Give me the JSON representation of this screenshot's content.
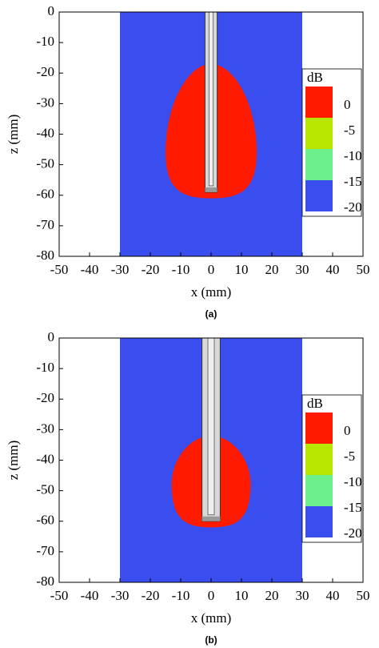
{
  "chart_data": [
    {
      "type": "contour",
      "caption": "(a)",
      "xlabel": "x (mm)",
      "ylabel": "z (mm)",
      "xlim": [
        -50,
        50
      ],
      "ylim": [
        -80,
        0
      ],
      "xticks": [
        -50,
        -40,
        -30,
        -20,
        -10,
        0,
        10,
        20,
        30,
        40,
        50
      ],
      "yticks": [
        0,
        -10,
        -20,
        -30,
        -40,
        -50,
        -60,
        -70,
        -80
      ],
      "colorbar": {
        "title": "dB",
        "levels": [
          0,
          -5,
          -10,
          -15,
          -20
        ],
        "colors": [
          "#ff1a00",
          "#b8e600",
          "#6cf08c",
          "#3a4ef0"
        ]
      }
    },
    {
      "type": "contour",
      "caption": "(b)",
      "xlabel": "x (mm)",
      "ylabel": "z (mm)",
      "xlim": [
        -50,
        50
      ],
      "ylim": [
        -80,
        0
      ],
      "xticks": [
        -50,
        -40,
        -30,
        -20,
        -10,
        0,
        10,
        20,
        30,
        40,
        50
      ],
      "yticks": [
        0,
        -10,
        -20,
        -30,
        -40,
        -50,
        -60,
        -70,
        -80
      ],
      "colorbar": {
        "title": "dB",
        "levels": [
          0,
          -5,
          -10,
          -15,
          -20
        ],
        "colors": [
          "#ff1a00",
          "#b8e600",
          "#6cf08c",
          "#3a4ef0"
        ]
      }
    }
  ]
}
